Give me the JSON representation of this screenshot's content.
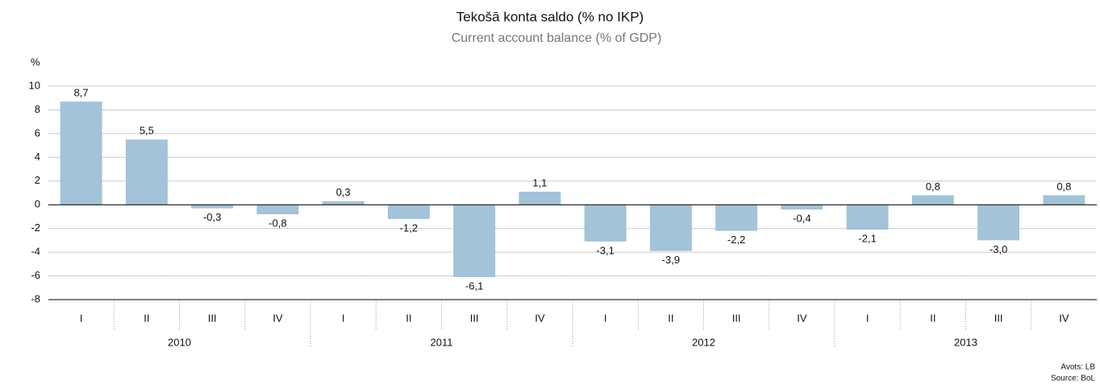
{
  "chart_data": {
    "type": "bar",
    "title": "Tekošā konta saldo (% no IKP)",
    "subtitle": "Current account balance (% of GDP)",
    "y_label": "%",
    "categories": [
      "I",
      "II",
      "III",
      "IV",
      "I",
      "II",
      "III",
      "IV",
      "I",
      "II",
      "III",
      "IV",
      "I",
      "II",
      "III",
      "IV"
    ],
    "year_groups": [
      "2010",
      "2011",
      "2012",
      "2013"
    ],
    "values": [
      8.7,
      5.5,
      -0.3,
      -0.8,
      0.3,
      -1.2,
      -6.1,
      1.1,
      -3.1,
      -3.9,
      -2.2,
      -0.4,
      -2.1,
      0.8,
      -3.0,
      0.8
    ],
    "value_labels": [
      "8,7",
      "5,5",
      "-0,3",
      "-0,8",
      "0,3",
      "-1,2",
      "-6,1",
      "1,1",
      "-3,1",
      "-3,9",
      "-2,2",
      "-0,4",
      "-2,1",
      "0,8",
      "-3,0",
      "0,8"
    ],
    "color": "#a3c3d8",
    "ylim": [
      -8,
      10
    ],
    "yticks": [
      10,
      8,
      6,
      4,
      2,
      0,
      -2,
      -4,
      -6,
      -8
    ],
    "grid": true,
    "source": [
      "Avots: LB",
      "Source: BoL"
    ]
  }
}
